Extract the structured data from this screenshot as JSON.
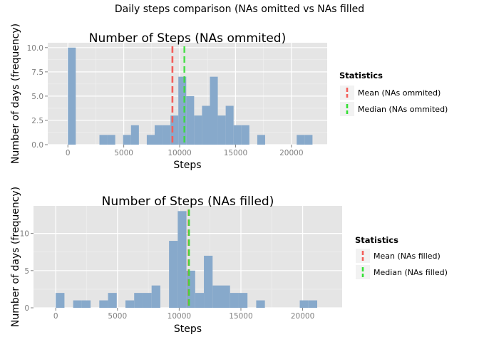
{
  "page_title": "Daily steps comparison (NAs omitted vs NAs filled",
  "colors": {
    "panel_bg": "#E5E5E5",
    "grid_major": "#FFFFFF",
    "grid_minor": "#F2F2F2",
    "bar_fill": "#87A9CB",
    "mean_line": "#F35E5A",
    "median_line": "#33E033",
    "axis_text": "#7F7F7F"
  },
  "chart_data": [
    {
      "type": "bar",
      "title": "Number of Steps (NAs ommited)",
      "xlabel": "Steps",
      "ylabel": "Number of days (frequency)",
      "xlim": [
        -1800,
        23200
      ],
      "ylim": [
        0,
        10.5
      ],
      "x_ticks": [
        0,
        5000,
        10000,
        15000,
        20000
      ],
      "x_tick_labels": [
        "0",
        "5000",
        "10000",
        "15000",
        "20000"
      ],
      "y_ticks": [
        0,
        2.5,
        5,
        7.5,
        10
      ],
      "y_tick_labels": [
        "0.0",
        "2.5",
        "5.0",
        "7.5",
        "10.0"
      ],
      "bin_width": 706,
      "bin_starts": [
        0,
        706,
        1412,
        2118,
        2824,
        3530,
        4236,
        4942,
        5648,
        6354,
        7060,
        7766,
        8472,
        9178,
        9884,
        10590,
        11296,
        12002,
        12708,
        13414,
        14120,
        14826,
        15532,
        16238,
        16944,
        17650,
        18356,
        19062,
        19768,
        20474,
        21180
      ],
      "values": [
        10,
        0,
        0,
        0,
        1,
        1,
        0,
        1,
        2,
        0,
        1,
        2,
        2,
        3,
        7,
        5,
        3,
        4,
        7,
        3,
        4,
        2,
        2,
        0,
        1,
        0,
        0,
        0,
        0,
        1,
        1
      ],
      "lines": [
        {
          "name": "Mean (NAs ommited)",
          "x": 9354,
          "color": "#F35E5A"
        },
        {
          "name": "Median (NAs ommited)",
          "x": 10395,
          "color": "#33E033"
        }
      ],
      "legend": {
        "title": "Statistics",
        "placement": "right",
        "items": [
          "Mean (NAs ommited)",
          "Median (NAs ommited)"
        ]
      },
      "grid": true
    },
    {
      "type": "bar",
      "title": "Number of Steps (NAs filled)",
      "xlabel": "Steps",
      "ylabel": "Number of days (frequency)",
      "xlim": [
        -1800,
        23200
      ],
      "ylim": [
        0,
        13.7
      ],
      "x_ticks": [
        0,
        5000,
        10000,
        15000,
        20000
      ],
      "x_tick_labels": [
        "0",
        "5000",
        "10000",
        "15000",
        "20000"
      ],
      "y_ticks": [
        0,
        5,
        10
      ],
      "y_tick_labels": [
        "0",
        "5",
        "10"
      ],
      "bin_width": 706,
      "bin_starts": [
        0,
        706,
        1412,
        2118,
        2824,
        3530,
        4236,
        4942,
        5648,
        6354,
        7060,
        7766,
        8472,
        9178,
        9884,
        10590,
        11296,
        12002,
        12708,
        13414,
        14120,
        14826,
        15532,
        16238,
        16944,
        17650,
        18356,
        19062,
        19768,
        20474,
        21180
      ],
      "values": [
        2,
        0,
        1,
        1,
        0,
        1,
        2,
        0,
        1,
        2,
        2,
        3,
        0,
        9,
        13,
        5,
        2,
        7,
        3,
        3,
        2,
        2,
        0,
        1,
        0,
        0,
        0,
        0,
        1,
        1,
        0
      ],
      "lines": [
        {
          "name": "Mean (NAs filled)",
          "x": 10766,
          "color": "#F35E5A"
        },
        {
          "name": "Median (NAs filled)",
          "x": 10766,
          "color": "#33E033"
        }
      ],
      "legend": {
        "title": "Statistics",
        "placement": "right",
        "items": [
          "Mean (NAs filled)",
          "Median (NAs filled)"
        ]
      },
      "grid": true
    }
  ]
}
